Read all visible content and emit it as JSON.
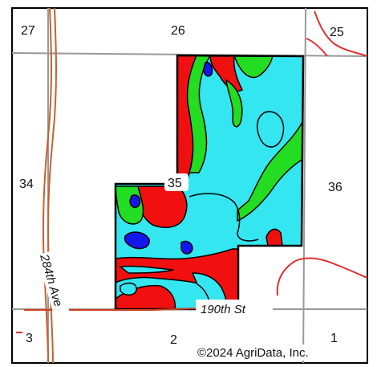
{
  "sections": {
    "s25": "25",
    "s26": "26",
    "s27": "27",
    "s34": "34",
    "s35": "35",
    "s36": "36",
    "s1": "1",
    "s2": "2",
    "s3": "3"
  },
  "roads": {
    "avenue": "284th Ave",
    "street": "190th St"
  },
  "copyright": "©2024 AgriData, Inc.",
  "colors": {
    "light_blue": "#33e6f0",
    "red": "#f01010",
    "green": "#22dd22",
    "dark_blue": "#1515ee",
    "grid": "#999999",
    "road": "#d04020",
    "border": "#000000"
  }
}
